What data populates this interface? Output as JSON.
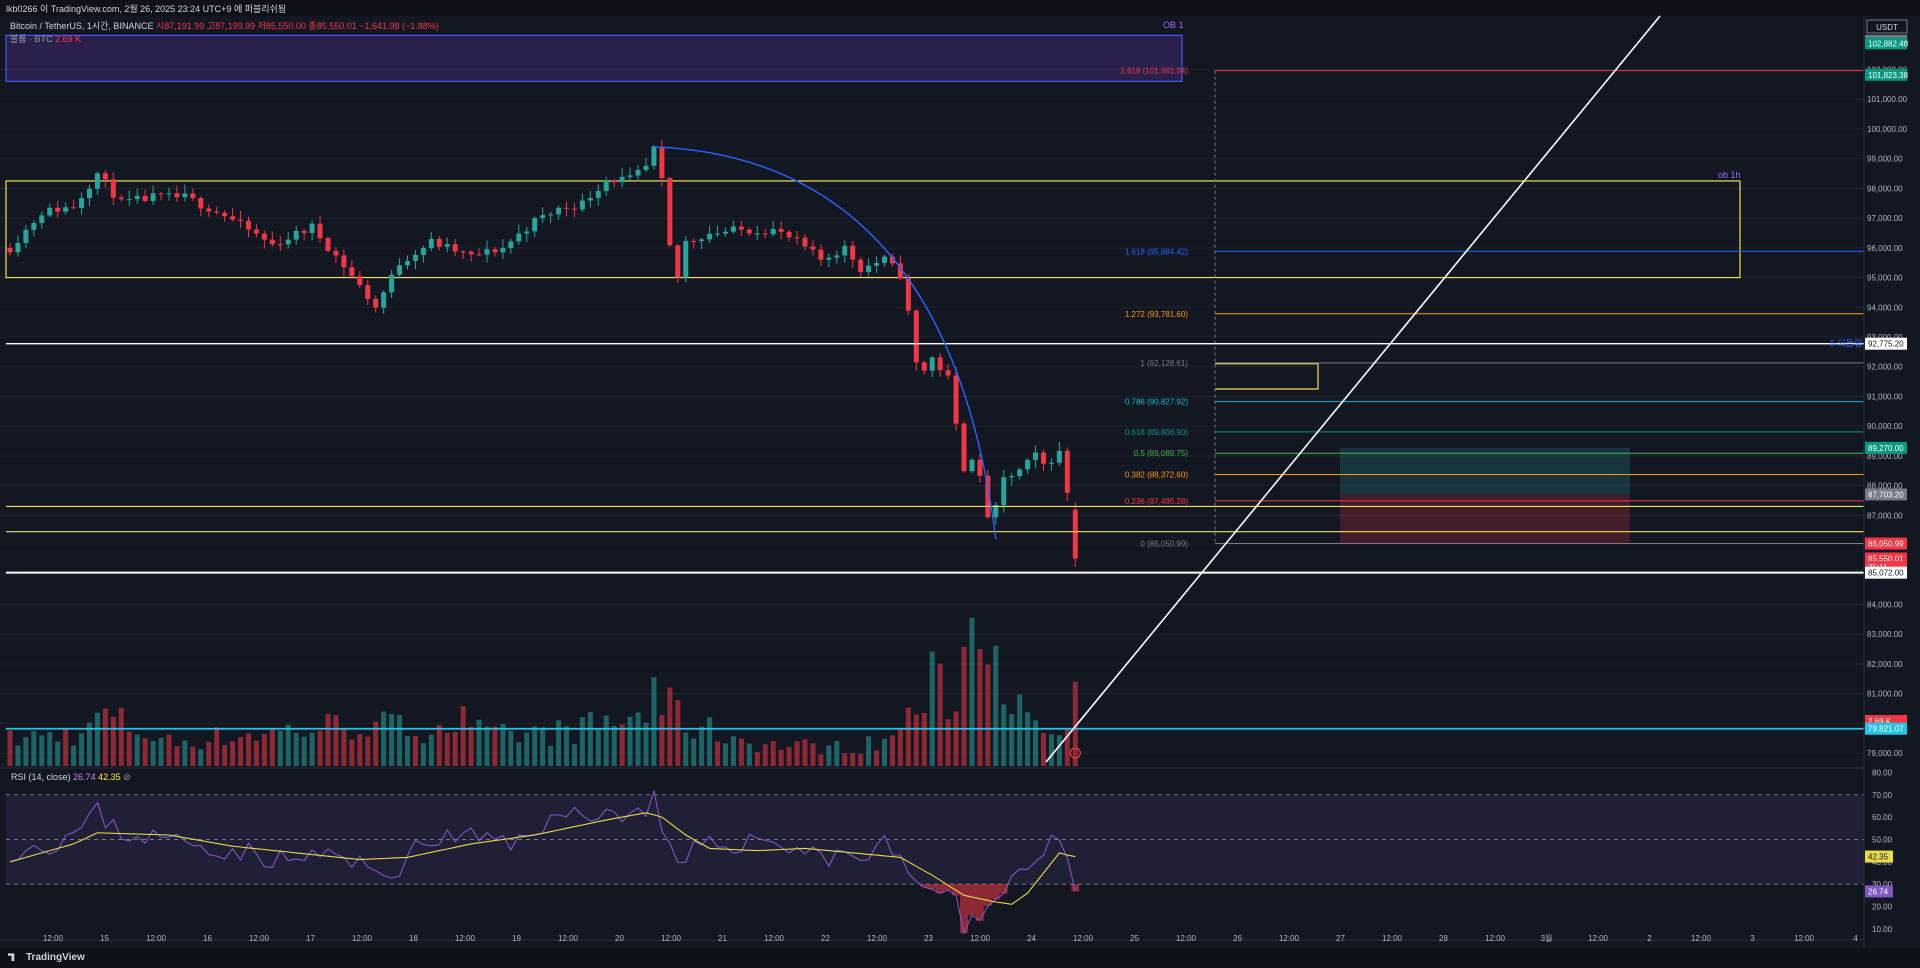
{
  "header": {
    "attribution": "lkb0266 이 TradingView.com, 2월 26, 2025 23:24 UTC+9 에 퍼블리쉬됨"
  },
  "legend": {
    "symbol": "Bitcoin / TetherUS, 1시간, BINANCE",
    "ohlc": "시87,191.99 고87,199.99 저85,550.00 종85,550.01 −1,641.98 (−1.88%)",
    "volume_label": "볼륨 · BTC",
    "volume_value": "2.69 K"
  },
  "rsi_legend": {
    "label": "RSI (14, close)",
    "rsi_value": "26.74",
    "ma_value": "42.35",
    "icon": "⊘"
  },
  "brand": "TradingView",
  "colors": {
    "bg": "#131722",
    "up": "#26a69a",
    "down": "#f23645",
    "zone_yellow": "#f0e056",
    "ob_blue": "#3d5afe",
    "fib_arc": "#2962ff",
    "trend_white": "#ffffff",
    "cyan": "#22c5e6",
    "rsi": "#7e57c2",
    "rsi_ma": "#e6d94a"
  },
  "price_axis": {
    "currency": "USDT",
    "ticks": [
      "102,000.00",
      "101,000.00",
      "100,000.00",
      "99,000.00",
      "98,000.00",
      "97,000.00",
      "96,000.00",
      "95,000.00",
      "94,000.00",
      "93,000.00",
      "92,000.00",
      "91,000.00",
      "90,000.00",
      "89,000.00",
      "88,000.00",
      "87,000.00",
      "86,000.00",
      "85,000.00",
      "84,000.00",
      "83,000.00",
      "82,000.00",
      "81,000.00",
      "80,000.00",
      "79,000.00"
    ],
    "badges": [
      {
        "text": "102,964.65",
        "price": 102964.65,
        "color": "#787b86"
      },
      {
        "text": "102,882.46",
        "price": 102882.46,
        "color": "#089981"
      },
      {
        "text": "101,823.38",
        "price": 101823.38,
        "color": "#089981"
      },
      {
        "text": "92,775.20",
        "price": 92775.2,
        "color": "#ffffff"
      },
      {
        "text": "89,270.00",
        "price": 89270.0,
        "color": "#089981"
      },
      {
        "text": "87,703.20",
        "price": 87703.2,
        "color": "#787b86"
      },
      {
        "text": "86,050.99",
        "price": 86050.99,
        "color": "#f23645"
      },
      {
        "text": "85,550.01",
        "price": 85550.01,
        "color": "#f23645"
      },
      {
        "text": "35:11",
        "price": 85260,
        "color": "#f23645"
      },
      {
        "text": "85,072.00",
        "price": 85072.0,
        "color": "#ffffff"
      },
      {
        "text": "2.69 K",
        "price": 80080,
        "color": "#f23645"
      },
      {
        "text": "79,821.07",
        "price": 79821.07,
        "color": "#22c5e6"
      }
    ]
  },
  "rsi_axis": {
    "ticks": [
      "80.00",
      "70.00",
      "60.00",
      "50.00",
      "40.00",
      "30.00",
      "20.00",
      "10.00"
    ],
    "badges": [
      {
        "text": "42.35",
        "value": 42.35,
        "color": "#e6d94a"
      },
      {
        "text": "26.74",
        "value": 26.74,
        "color": "#7e57c2"
      }
    ]
  },
  "time_axis": {
    "labels": [
      "12:00",
      "15",
      "12:00",
      "16",
      "12:00",
      "17",
      "12:00",
      "18",
      "12:00",
      "19",
      "12:00",
      "20",
      "12:00",
      "21",
      "12:00",
      "22",
      "12:00",
      "23",
      "12:00",
      "24",
      "12:00",
      "25",
      "12:00",
      "26",
      "12:00",
      "27",
      "12:00",
      "28",
      "12:00",
      "3월",
      "12:00",
      "2",
      "12:00",
      "3",
      "12:00",
      "4"
    ]
  },
  "annotations": {
    "ob1_label": "OB 1",
    "ob1h_label": "ob 1h",
    "white_line_label": "5 되돌림",
    "fib_levels": [
      {
        "text": "2.618 (101,961.94)",
        "price": 101961.94,
        "color": "#f23645"
      },
      {
        "text": "1.618 (95,884.42)",
        "price": 95884.42,
        "color": "#2962ff"
      },
      {
        "text": "1.272 (93,781.60)",
        "price": 93781.6,
        "color": "#ff9800"
      },
      {
        "text": "1 (92,128.61)",
        "price": 92128.61,
        "color": "#787b86"
      },
      {
        "text": "0.786 (90,827.92)",
        "price": 90827.92,
        "color": "#00bcd4"
      },
      {
        "text": "0.618 (89,806.90)",
        "price": 89806.9,
        "color": "#009688"
      },
      {
        "text": "0.5 (89,089.75)",
        "price": 89089.75,
        "color": "#4caf50"
      },
      {
        "text": "0.382 (88,372.60)",
        "price": 88372.6,
        "color": "#ff9800"
      },
      {
        "text": "0.236 (87,485.28)",
        "price": 87485.28,
        "color": "#f23645"
      },
      {
        "text": "0 (86,050.99)",
        "price": 86050.99,
        "color": "#787b86"
      }
    ]
  },
  "chart_data": {
    "type": "candlestick",
    "symbol": "Bitcoin / TetherUS",
    "interval": "1시간",
    "exchange": "BINANCE",
    "ylim": [
      78500,
      103800
    ],
    "x_dates": [
      "15",
      "16",
      "17",
      "18",
      "19",
      "20",
      "21",
      "22",
      "23",
      "24",
      "25",
      "26",
      "27",
      "28",
      "3월",
      "2",
      "3",
      "4"
    ],
    "last": {
      "open": 87191.99,
      "high": 87199.99,
      "low": 85550.0,
      "close": 85550.01,
      "change": -1641.98,
      "change_pct": -1.88
    },
    "price_path": [
      [
        0,
        96000
      ],
      [
        4,
        97200
      ],
      [
        8,
        97400
      ],
      [
        11,
        98500
      ],
      [
        14,
        97500
      ],
      [
        18,
        97700
      ],
      [
        22,
        97700
      ],
      [
        27,
        97100
      ],
      [
        33,
        96100
      ],
      [
        38,
        96700
      ],
      [
        42,
        95400
      ],
      [
        46,
        94000
      ],
      [
        49,
        95500
      ],
      [
        53,
        96200
      ],
      [
        58,
        95700
      ],
      [
        62,
        96000
      ],
      [
        66,
        96900
      ],
      [
        69,
        97300
      ],
      [
        72,
        97500
      ],
      [
        75,
        98300
      ],
      [
        78,
        98300
      ],
      [
        80,
        98700
      ],
      [
        81,
        99300
      ],
      [
        82,
        98200
      ],
      [
        83,
        96000
      ],
      [
        84,
        95000
      ],
      [
        85,
        96200
      ],
      [
        88,
        96500
      ],
      [
        92,
        96600
      ],
      [
        96,
        96600
      ],
      [
        99,
        96200
      ],
      [
        102,
        95600
      ],
      [
        105,
        96000
      ],
      [
        107,
        95300
      ],
      [
        110,
        95600
      ],
      [
        112,
        95100
      ],
      [
        113,
        93800
      ],
      [
        114,
        92100
      ],
      [
        115,
        91900
      ],
      [
        116,
        92300
      ],
      [
        118,
        91600
      ],
      [
        119,
        90000
      ],
      [
        120,
        88600
      ],
      [
        121,
        89000
      ],
      [
        122,
        88200
      ],
      [
        123,
        87000
      ],
      [
        124,
        87200
      ],
      [
        125,
        88200
      ],
      [
        127,
        88500
      ],
      [
        129,
        89000
      ],
      [
        130,
        88700
      ],
      [
        132,
        89100
      ],
      [
        133,
        87800
      ],
      [
        134,
        85550
      ]
    ],
    "volume_k": [
      [
        0,
        1.0
      ],
      [
        10,
        1.3
      ],
      [
        11,
        2.0
      ],
      [
        20,
        0.9
      ],
      [
        30,
        1.2
      ],
      [
        40,
        1.5
      ],
      [
        45,
        1.6
      ],
      [
        50,
        1.4
      ],
      [
        57,
        1.7
      ],
      [
        60,
        1.1
      ],
      [
        70,
        1.3
      ],
      [
        80,
        1.9
      ],
      [
        81,
        3.6
      ],
      [
        82,
        2.3
      ],
      [
        86,
        1.5
      ],
      [
        95,
        0.8
      ],
      [
        105,
        0.7
      ],
      [
        110,
        0.9
      ],
      [
        112,
        1.5
      ],
      [
        114,
        2.1
      ],
      [
        116,
        3.1
      ],
      [
        118,
        2.6
      ],
      [
        119,
        1.9
      ],
      [
        120,
        7.0
      ],
      [
        121,
        5.0
      ],
      [
        122,
        4.5
      ],
      [
        123,
        6.0
      ],
      [
        124,
        5.4
      ],
      [
        125,
        4.0
      ],
      [
        127,
        2.0
      ],
      [
        130,
        1.0
      ],
      [
        133,
        1.4
      ],
      [
        134,
        2.69
      ]
    ],
    "rsi": {
      "period": 14,
      "last": 26.74,
      "ma_last": 42.35,
      "levels": [
        70,
        50,
        30
      ],
      "path": [
        [
          0,
          45
        ],
        [
          5,
          48
        ],
        [
          8,
          52
        ],
        [
          11,
          62
        ],
        [
          14,
          53
        ],
        [
          20,
          50
        ],
        [
          25,
          47
        ],
        [
          30,
          44
        ],
        [
          35,
          40
        ],
        [
          40,
          44
        ],
        [
          45,
          36
        ],
        [
          48,
          35
        ],
        [
          52,
          48
        ],
        [
          56,
          52
        ],
        [
          60,
          50
        ],
        [
          63,
          47
        ],
        [
          66,
          56
        ],
        [
          70,
          60
        ],
        [
          73,
          63
        ],
        [
          76,
          61
        ],
        [
          79,
          62
        ],
        [
          81,
          68
        ],
        [
          82,
          55
        ],
        [
          84,
          35
        ],
        [
          86,
          45
        ],
        [
          90,
          48
        ],
        [
          95,
          50
        ],
        [
          99,
          46
        ],
        [
          103,
          42
        ],
        [
          105,
          48
        ],
        [
          107,
          38
        ],
        [
          109,
          48
        ],
        [
          111,
          46
        ],
        [
          113,
          35
        ],
        [
          115,
          30
        ],
        [
          117,
          22
        ],
        [
          118,
          28
        ],
        [
          119,
          20
        ],
        [
          120,
          12
        ],
        [
          121,
          18
        ],
        [
          122,
          18
        ],
        [
          124,
          22
        ],
        [
          126,
          33
        ],
        [
          128,
          40
        ],
        [
          130,
          44
        ],
        [
          132,
          50
        ],
        [
          133,
          40
        ],
        [
          134,
          27
        ]
      ],
      "ma_path": [
        [
          0,
          40
        ],
        [
          8,
          48
        ],
        [
          11,
          53
        ],
        [
          20,
          52
        ],
        [
          28,
          47
        ],
        [
          36,
          44
        ],
        [
          44,
          41
        ],
        [
          50,
          42
        ],
        [
          58,
          48
        ],
        [
          66,
          52
        ],
        [
          74,
          58
        ],
        [
          80,
          62
        ],
        [
          82,
          60
        ],
        [
          85,
          52
        ],
        [
          88,
          46
        ],
        [
          94,
          45
        ],
        [
          100,
          46
        ],
        [
          106,
          44
        ],
        [
          112,
          42
        ],
        [
          116,
          34
        ],
        [
          120,
          25
        ],
        [
          124,
          22
        ],
        [
          126,
          21
        ],
        [
          128,
          26
        ],
        [
          130,
          35
        ],
        [
          132,
          44
        ],
        [
          134,
          42
        ]
      ]
    }
  }
}
